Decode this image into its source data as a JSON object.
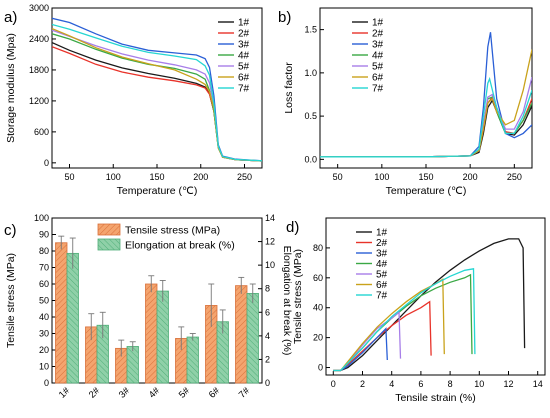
{
  "colors": {
    "1#": "#1a1a1a",
    "2#": "#e8332a",
    "3#": "#2a5fd6",
    "4#": "#3aa845",
    "5#": "#a77ee8",
    "6#": "#c9a21b",
    "7#": "#25d6d2",
    "tensile_bar": "#f4a46e",
    "elongation_bar": "#8fd0a8"
  },
  "chart_data": [
    {
      "panel": "a)",
      "type": "line",
      "xlabel": "Temperature (℃)",
      "ylabel": "Storage modulus (Mpa)",
      "xlim": [
        30,
        270
      ],
      "ylim": [
        -100,
        3000
      ],
      "xticks": [
        "50",
        "100",
        "150",
        "200",
        "250"
      ],
      "yticks": [
        "0",
        "600",
        "1200",
        "1800",
        "2400",
        "3000"
      ],
      "legend": "top-right",
      "series": [
        {
          "name": "1#",
          "x": [
            30,
            50,
            80,
            110,
            140,
            170,
            195,
            205,
            210,
            215,
            220,
            225,
            240,
            270
          ],
          "y": [
            2330,
            2180,
            1990,
            1840,
            1730,
            1640,
            1540,
            1470,
            1340,
            1000,
            300,
            110,
            60,
            35
          ]
        },
        {
          "name": "2#",
          "x": [
            30,
            50,
            80,
            110,
            140,
            170,
            195,
            205,
            210,
            215,
            220,
            225,
            240,
            270
          ],
          "y": [
            2250,
            2120,
            1910,
            1760,
            1660,
            1590,
            1510,
            1450,
            1330,
            1000,
            320,
            120,
            60,
            35
          ]
        },
        {
          "name": "3#",
          "x": [
            30,
            50,
            80,
            110,
            140,
            170,
            195,
            205,
            210,
            215,
            220,
            225,
            240,
            270
          ],
          "y": [
            2800,
            2720,
            2500,
            2300,
            2180,
            2130,
            2090,
            2020,
            1850,
            1300,
            350,
            130,
            70,
            40
          ]
        },
        {
          "name": "4#",
          "x": [
            30,
            50,
            80,
            110,
            140,
            170,
            195,
            205,
            210,
            215,
            220,
            225,
            240,
            270
          ],
          "y": [
            2500,
            2400,
            2200,
            2030,
            1910,
            1830,
            1720,
            1620,
            1400,
            1000,
            290,
            110,
            60,
            35
          ]
        },
        {
          "name": "5#",
          "x": [
            30,
            50,
            80,
            110,
            140,
            170,
            195,
            205,
            210,
            215,
            220,
            225,
            240,
            270
          ],
          "y": [
            2570,
            2450,
            2270,
            2110,
            1990,
            1900,
            1800,
            1720,
            1550,
            1100,
            300,
            110,
            60,
            35
          ]
        },
        {
          "name": "6#",
          "x": [
            30,
            50,
            80,
            110,
            140,
            170,
            195,
            205,
            210,
            215,
            220,
            225,
            240,
            270
          ],
          "y": [
            2600,
            2460,
            2230,
            2050,
            1920,
            1800,
            1620,
            1520,
            1380,
            1050,
            290,
            110,
            60,
            35
          ]
        },
        {
          "name": "7#",
          "x": [
            30,
            50,
            80,
            110,
            140,
            170,
            195,
            205,
            210,
            215,
            220,
            225,
            240,
            270
          ],
          "y": [
            2680,
            2590,
            2420,
            2260,
            2140,
            2070,
            2000,
            1880,
            1700,
            1150,
            320,
            120,
            65,
            40
          ]
        }
      ]
    },
    {
      "panel": "b)",
      "type": "line",
      "xlabel": "Temperature (℃)",
      "ylabel": "Loss factor",
      "xlim": [
        30,
        270
      ],
      "ylim": [
        -0.1,
        1.75
      ],
      "xticks": [
        "50",
        "100",
        "150",
        "200",
        "250"
      ],
      "yticks": [
        "0.0",
        "0.5",
        "1.0",
        "1.5"
      ],
      "legend": "top-left",
      "series": [
        {
          "name": "1#",
          "x": [
            30,
            150,
            200,
            210,
            215,
            220,
            225,
            230,
            240,
            250,
            260,
            270
          ],
          "y": [
            0.03,
            0.03,
            0.04,
            0.08,
            0.3,
            0.6,
            0.68,
            0.55,
            0.3,
            0.28,
            0.4,
            0.62
          ]
        },
        {
          "name": "2#",
          "x": [
            30,
            150,
            200,
            210,
            215,
            220,
            225,
            230,
            240,
            250,
            260,
            270
          ],
          "y": [
            0.03,
            0.03,
            0.04,
            0.1,
            0.35,
            0.65,
            0.72,
            0.55,
            0.32,
            0.3,
            0.45,
            0.7
          ]
        },
        {
          "name": "3#",
          "x": [
            30,
            150,
            200,
            210,
            215,
            220,
            223,
            230,
            240,
            250,
            260,
            270
          ],
          "y": [
            0.03,
            0.03,
            0.04,
            0.15,
            0.6,
            1.3,
            1.47,
            0.7,
            0.3,
            0.25,
            0.3,
            0.4
          ]
        },
        {
          "name": "4#",
          "x": [
            30,
            150,
            200,
            210,
            215,
            220,
            225,
            230,
            240,
            250,
            260,
            270
          ],
          "y": [
            0.03,
            0.03,
            0.04,
            0.1,
            0.4,
            0.7,
            0.72,
            0.55,
            0.3,
            0.3,
            0.45,
            0.65
          ]
        },
        {
          "name": "5#",
          "x": [
            30,
            150,
            200,
            210,
            215,
            220,
            225,
            230,
            240,
            250,
            260,
            270
          ],
          "y": [
            0.03,
            0.03,
            0.04,
            0.1,
            0.4,
            0.72,
            0.75,
            0.6,
            0.35,
            0.35,
            0.55,
            0.95
          ]
        },
        {
          "name": "6#",
          "x": [
            30,
            150,
            200,
            210,
            215,
            220,
            225,
            230,
            240,
            250,
            260,
            270
          ],
          "y": [
            0.03,
            0.03,
            0.04,
            0.1,
            0.35,
            0.65,
            0.7,
            0.55,
            0.4,
            0.45,
            0.8,
            1.27
          ]
        },
        {
          "name": "7#",
          "x": [
            30,
            150,
            200,
            210,
            215,
            220,
            222,
            230,
            240,
            250,
            260,
            270
          ],
          "y": [
            0.03,
            0.03,
            0.04,
            0.12,
            0.5,
            0.88,
            0.93,
            0.6,
            0.3,
            0.3,
            0.5,
            0.8
          ]
        }
      ]
    },
    {
      "panel": "c)",
      "type": "bar",
      "categories": [
        "1#",
        "2#",
        "3#",
        "4#",
        "5#",
        "6#",
        "7#"
      ],
      "ylabel": "Tensile stress (MPa)",
      "y2label": "Elongation at break (%)",
      "ylim": [
        0,
        100
      ],
      "y2lim": [
        0,
        14
      ],
      "yticks": [
        "0",
        "10",
        "20",
        "30",
        "40",
        "50",
        "60",
        "70",
        "80",
        "90",
        "100"
      ],
      "y2ticks": [
        "0",
        "2",
        "4",
        "6",
        "8",
        "10",
        "12",
        "14"
      ],
      "legend": "top-center",
      "series": [
        {
          "name": "Tensile stress (MPa)",
          "axis": "left",
          "values": [
            85,
            34,
            21,
            60,
            27,
            47,
            59
          ],
          "errors": [
            4,
            8,
            5,
            5,
            7,
            13,
            5
          ]
        },
        {
          "name": "Elongation at break (%)",
          "axis": "right",
          "values": [
            11.0,
            4.9,
            3.1,
            7.8,
            3.9,
            5.2,
            7.6
          ],
          "errors": [
            1.3,
            1.1,
            0.4,
            0.9,
            0.3,
            1.0,
            0.8
          ]
        }
      ]
    },
    {
      "panel": "d)",
      "type": "line",
      "xlabel": "Tensile strain (%)",
      "ylabel": "Tensile stress (MPa)",
      "xlim": [
        -0.5,
        14.5
      ],
      "ylim": [
        -5,
        100
      ],
      "xticks": [
        "0",
        "2",
        "4",
        "6",
        "8",
        "10",
        "12",
        "14"
      ],
      "yticks": [
        "0",
        "20",
        "40",
        "60",
        "80"
      ],
      "legend": "top-left",
      "series": [
        {
          "name": "1#",
          "x": [
            0,
            0.5,
            1,
            2,
            3,
            4,
            5,
            6,
            7,
            8,
            9,
            10,
            11,
            12,
            12.7,
            13,
            13.1
          ],
          "y": [
            -2,
            -2,
            0,
            8,
            18,
            28,
            38,
            48,
            57,
            65,
            72,
            78,
            83,
            86,
            86,
            80,
            13
          ]
        },
        {
          "name": "2#",
          "x": [
            0,
            0.5,
            1,
            2,
            3,
            4,
            5,
            6,
            6.6,
            6.7
          ],
          "y": [
            -2,
            -2,
            2,
            11,
            20,
            28,
            35,
            40,
            44,
            8
          ]
        },
        {
          "name": "3#",
          "x": [
            0,
            0.5,
            1,
            2,
            3,
            3.6,
            3.7
          ],
          "y": [
            -2,
            -2,
            1,
            10,
            20,
            26,
            5
          ]
        },
        {
          "name": "4#",
          "x": [
            0,
            0.5,
            1,
            2,
            3,
            4,
            5,
            6,
            7,
            8,
            9,
            9.4,
            9.5
          ],
          "y": [
            -2,
            -2,
            3,
            13,
            24,
            33,
            41,
            48,
            53,
            57,
            60,
            62,
            9
          ]
        },
        {
          "name": "5#",
          "x": [
            0,
            0.5,
            1,
            2,
            3,
            4,
            4.5,
            4.6
          ],
          "y": [
            -2,
            -2,
            3,
            15,
            26,
            33,
            37,
            6
          ]
        },
        {
          "name": "6#",
          "x": [
            0,
            0.5,
            1,
            2,
            3,
            4,
            5,
            6,
            7,
            7.5,
            7.6
          ],
          "y": [
            -2,
            -2,
            4,
            16,
            27,
            36,
            44,
            51,
            56,
            59,
            9
          ]
        },
        {
          "name": "7#",
          "x": [
            0,
            0.5,
            1,
            2,
            3,
            4,
            5,
            6,
            7,
            8,
            9,
            9.6,
            9.7
          ],
          "y": [
            -2,
            -2,
            3,
            13,
            24,
            34,
            42,
            50,
            56,
            61,
            65,
            66,
            9
          ]
        }
      ]
    }
  ]
}
